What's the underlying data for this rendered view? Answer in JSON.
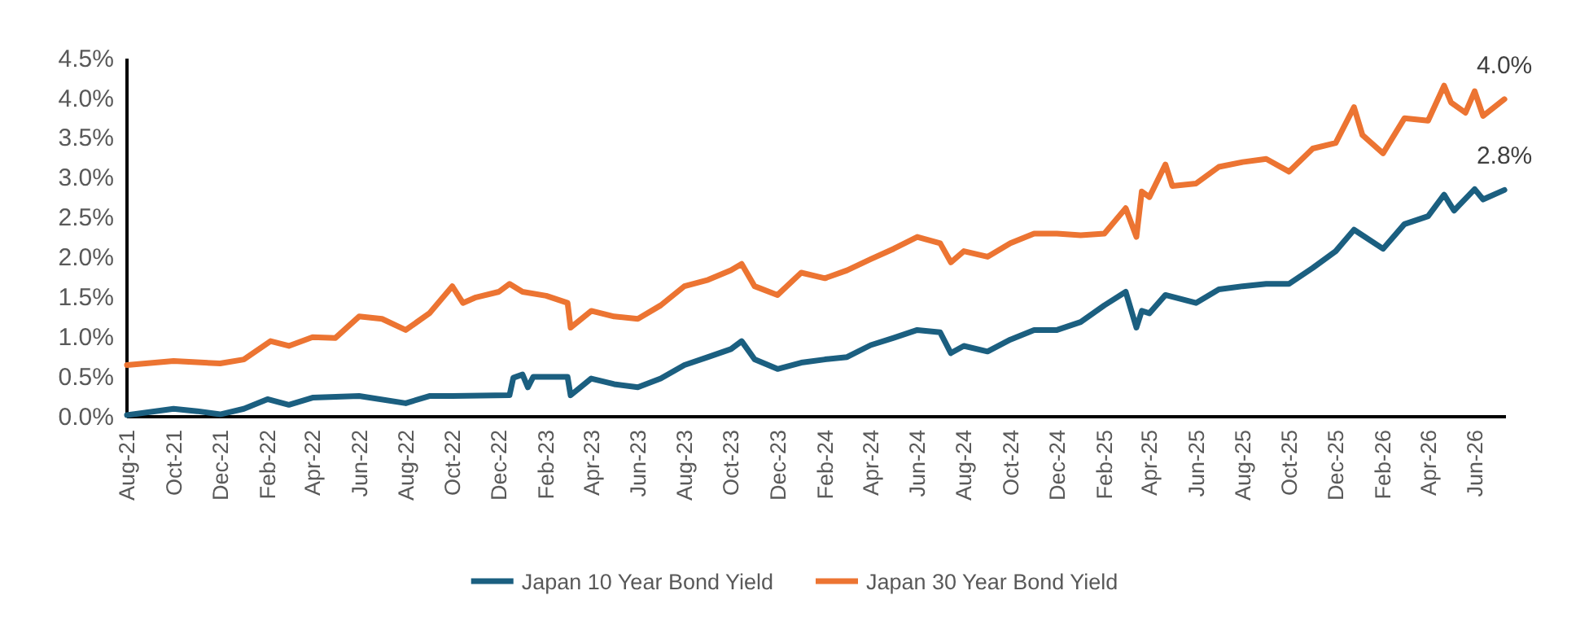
{
  "chart_data": {
    "type": "line",
    "xlim": [
      "2021-08-01",
      "2026-07-12"
    ],
    "xticks": [
      {
        "value": "2021-08-01",
        "label": "Aug-21"
      },
      {
        "value": "2021-10-01",
        "label": "Oct-21"
      },
      {
        "value": "2021-12-01",
        "label": "Dec-21"
      },
      {
        "value": "2022-02-01",
        "label": "Feb-22"
      },
      {
        "value": "2022-04-01",
        "label": "Apr-22"
      },
      {
        "value": "2022-06-01",
        "label": "Jun-22"
      },
      {
        "value": "2022-08-01",
        "label": "Aug-22"
      },
      {
        "value": "2022-10-01",
        "label": "Oct-22"
      },
      {
        "value": "2022-12-01",
        "label": "Dec-22"
      },
      {
        "value": "2023-02-01",
        "label": "Feb-23"
      },
      {
        "value": "2023-04-01",
        "label": "Apr-23"
      },
      {
        "value": "2023-06-01",
        "label": "Jun-23"
      },
      {
        "value": "2023-08-01",
        "label": "Aug-23"
      },
      {
        "value": "2023-10-01",
        "label": "Oct-23"
      },
      {
        "value": "2023-12-01",
        "label": "Dec-23"
      },
      {
        "value": "2024-02-01",
        "label": "Feb-24"
      },
      {
        "value": "2024-04-01",
        "label": "Apr-24"
      },
      {
        "value": "2024-06-01",
        "label": "Jun-24"
      },
      {
        "value": "2024-08-01",
        "label": "Aug-24"
      },
      {
        "value": "2024-10-01",
        "label": "Oct-24"
      },
      {
        "value": "2024-12-01",
        "label": "Dec-24"
      },
      {
        "value": "2025-02-01",
        "label": "Feb-25"
      },
      {
        "value": "2025-04-01",
        "label": "Apr-25"
      },
      {
        "value": "2025-06-01",
        "label": "Jun-25"
      },
      {
        "value": "2025-08-01",
        "label": "Aug-25"
      },
      {
        "value": "2025-10-01",
        "label": "Oct-25"
      },
      {
        "value": "2025-12-01",
        "label": "Dec-25"
      },
      {
        "value": "2026-02-01",
        "label": "Feb-26"
      },
      {
        "value": "2026-04-01",
        "label": "Apr-26"
      },
      {
        "value": "2026-06-01",
        "label": "Jun-26"
      }
    ],
    "ylim": [
      0,
      4.5
    ],
    "yticks": [
      {
        "value": 0,
        "label": "0.0%"
      },
      {
        "value": 0.5,
        "label": "0.5%"
      },
      {
        "value": 1,
        "label": "1.0%"
      },
      {
        "value": 1.5,
        "label": "1.5%"
      },
      {
        "value": 2,
        "label": "2.0%"
      },
      {
        "value": 2.5,
        "label": "2.5%"
      },
      {
        "value": 3,
        "label": "3.0%"
      },
      {
        "value": 3.5,
        "label": "3.5%"
      },
      {
        "value": 4,
        "label": "4.0%"
      },
      {
        "value": 4.5,
        "label": "4.5%"
      }
    ],
    "legend": "bottom",
    "annotations": [
      {
        "text": "4.0%",
        "x": "2026-07-10",
        "y": 3.99
      },
      {
        "text": "2.8%",
        "x": "2026-07-10",
        "y": 2.85
      }
    ],
    "series": [
      {
        "name": "Japan 10 Year Bond Yield",
        "color": "#1b5f80",
        "x": [
          "2021-08-01",
          "2021-10-01",
          "2021-11-01",
          "2021-12-01",
          "2022-01-01",
          "2022-02-01",
          "2022-03-01",
          "2022-04-01",
          "2022-06-01",
          "2022-08-01",
          "2022-09-01",
          "2022-10-01",
          "2022-12-15",
          "2022-12-20",
          "2023-01-01",
          "2023-01-08",
          "2023-01-15",
          "2023-03-01",
          "2023-03-05",
          "2023-04-01",
          "2023-05-01",
          "2023-06-01",
          "2023-07-01",
          "2023-08-01",
          "2023-09-01",
          "2023-10-01",
          "2023-10-15",
          "2023-11-01",
          "2023-12-01",
          "2024-01-01",
          "2024-02-01",
          "2024-03-01",
          "2024-04-01",
          "2024-05-01",
          "2024-06-01",
          "2024-07-01",
          "2024-07-15",
          "2024-08-01",
          "2024-09-01",
          "2024-10-01",
          "2024-11-01",
          "2024-12-01",
          "2025-01-01",
          "2025-02-01",
          "2025-03-01",
          "2025-03-15",
          "2025-03-22",
          "2025-04-01",
          "2025-04-22",
          "2025-06-01",
          "2025-07-01",
          "2025-08-01",
          "2025-09-01",
          "2025-10-01",
          "2025-11-01",
          "2025-12-01",
          "2025-12-25",
          "2026-02-01",
          "2026-03-01",
          "2026-04-01",
          "2026-04-22",
          "2026-05-05",
          "2026-06-01",
          "2026-06-12",
          "2026-07-10"
        ],
        "values": [
          0.02,
          0.1,
          0.07,
          0.03,
          0.1,
          0.22,
          0.15,
          0.24,
          0.26,
          0.17,
          0.26,
          0.26,
          0.27,
          0.49,
          0.53,
          0.37,
          0.5,
          0.5,
          0.27,
          0.48,
          0.41,
          0.37,
          0.48,
          0.65,
          0.75,
          0.85,
          0.95,
          0.72,
          0.6,
          0.68,
          0.72,
          0.75,
          0.9,
          0.99,
          1.09,
          1.06,
          0.8,
          0.89,
          0.82,
          0.97,
          1.09,
          1.09,
          1.19,
          1.4,
          1.57,
          1.12,
          1.33,
          1.3,
          1.53,
          1.43,
          1.6,
          1.64,
          1.67,
          1.67,
          1.87,
          2.08,
          2.35,
          2.11,
          2.42,
          2.52,
          2.79,
          2.59,
          2.86,
          2.73,
          2.85
        ]
      },
      {
        "name": "Japan 30 Year Bond Yield",
        "color": "#ec7432",
        "x": [
          "2021-08-01",
          "2021-10-01",
          "2021-12-01",
          "2022-01-01",
          "2022-02-05",
          "2022-03-01",
          "2022-04-01",
          "2022-05-01",
          "2022-06-01",
          "2022-07-01",
          "2022-08-01",
          "2022-09-01",
          "2022-10-01",
          "2022-10-15",
          "2022-11-01",
          "2022-12-01",
          "2022-12-15",
          "2023-01-01",
          "2023-02-01",
          "2023-03-01",
          "2023-03-05",
          "2023-04-01",
          "2023-05-01",
          "2023-06-01",
          "2023-07-01",
          "2023-08-01",
          "2023-09-01",
          "2023-10-01",
          "2023-10-15",
          "2023-11-01",
          "2023-12-01",
          "2024-01-01",
          "2024-02-01",
          "2024-03-01",
          "2024-04-01",
          "2024-05-01",
          "2024-06-01",
          "2024-07-01",
          "2024-07-15",
          "2024-08-01",
          "2024-09-01",
          "2024-10-01",
          "2024-11-01",
          "2024-12-01",
          "2025-01-01",
          "2025-02-01",
          "2025-03-01",
          "2025-03-15",
          "2025-03-22",
          "2025-04-01",
          "2025-04-22",
          "2025-05-01",
          "2025-06-01",
          "2025-07-01",
          "2025-08-01",
          "2025-09-01",
          "2025-10-01",
          "2025-11-01",
          "2025-12-01",
          "2025-12-25",
          "2026-01-05",
          "2026-02-01",
          "2026-03-01",
          "2026-04-01",
          "2026-04-22",
          "2026-05-01",
          "2026-05-20",
          "2026-06-01",
          "2026-06-12",
          "2026-07-10"
        ],
        "values": [
          0.65,
          0.7,
          0.67,
          0.72,
          0.95,
          0.89,
          1.0,
          0.99,
          1.26,
          1.23,
          1.09,
          1.3,
          1.64,
          1.43,
          1.5,
          1.57,
          1.67,
          1.57,
          1.52,
          1.43,
          1.12,
          1.33,
          1.26,
          1.23,
          1.4,
          1.64,
          1.72,
          1.84,
          1.92,
          1.64,
          1.53,
          1.81,
          1.74,
          1.84,
          1.98,
          2.11,
          2.26,
          2.18,
          1.94,
          2.08,
          2.01,
          2.18,
          2.3,
          2.3,
          2.28,
          2.3,
          2.62,
          2.26,
          2.83,
          2.76,
          3.17,
          2.9,
          2.93,
          3.14,
          3.2,
          3.24,
          3.08,
          3.37,
          3.44,
          3.89,
          3.54,
          3.31,
          3.75,
          3.72,
          4.16,
          3.95,
          3.82,
          4.09,
          3.78,
          3.99
        ]
      }
    ]
  }
}
